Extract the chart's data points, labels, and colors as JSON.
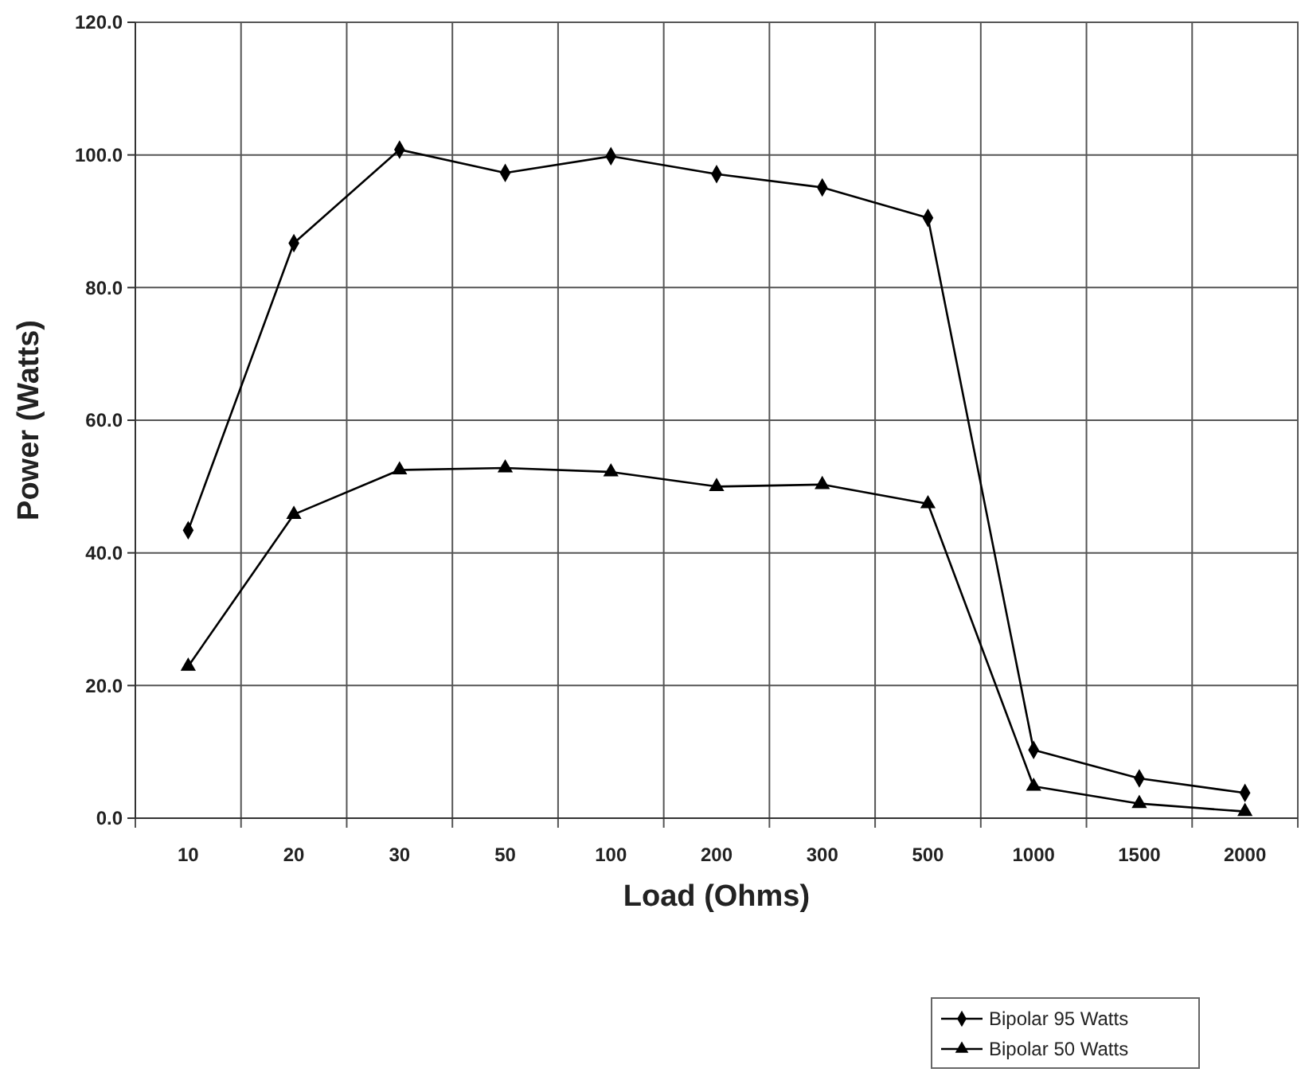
{
  "chart_data": {
    "type": "line",
    "xlabel": "Load (Ohms)",
    "ylabel": "Power (Watts)",
    "categories": [
      "10",
      "20",
      "30",
      "50",
      "100",
      "200",
      "300",
      "500",
      "1000",
      "1500",
      "2000"
    ],
    "series": [
      {
        "name": "Bipolar 95 Watts",
        "color": "#000000",
        "marker": "diamond",
        "values": [
          43.4,
          86.7,
          100.8,
          97.3,
          99.8,
          97.1,
          95.1,
          90.5,
          10.3,
          6.0,
          3.8
        ]
      },
      {
        "name": "Bipolar 50 Watts",
        "color": "#000000",
        "marker": "triangle",
        "values": [
          22.9,
          45.8,
          52.5,
          52.8,
          52.2,
          50.0,
          50.3,
          47.4,
          4.8,
          2.2,
          1.0
        ]
      }
    ],
    "ylim": [
      0,
      120
    ],
    "yticks": [
      {
        "value": 0,
        "label": "0.0"
      },
      {
        "value": 20,
        "label": "20.0"
      },
      {
        "value": 40,
        "label": "40.0"
      },
      {
        "value": 60,
        "label": "60.0"
      },
      {
        "value": 80,
        "label": "80.0"
      },
      {
        "value": 100,
        "label": "100.0"
      },
      {
        "value": 120,
        "label": "120.0"
      }
    ],
    "grid": true,
    "legend": "bottom right",
    "line_style": "solid"
  }
}
